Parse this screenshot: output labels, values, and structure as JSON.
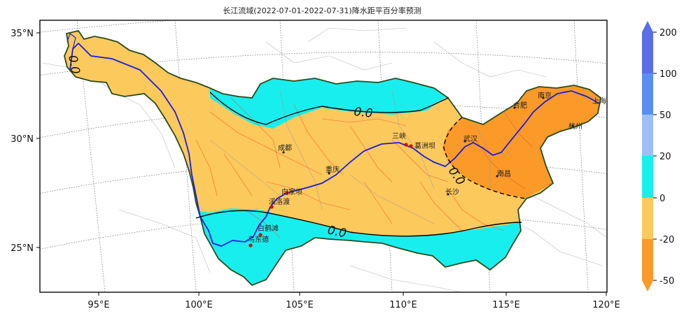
{
  "title": "长江流域(2022-07-01-2022-07-31)降水距平百分率预测",
  "axes": {
    "x_ticks": [
      "95°E",
      "100°E",
      "105°E",
      "110°E",
      "115°E",
      "120°E"
    ],
    "y_ticks": [
      "35°N",
      "30°N",
      "25°N"
    ]
  },
  "colorbar": {
    "ticks": [
      "200",
      "100",
      "50",
      "20",
      "0",
      "-20",
      "-50"
    ],
    "colors": [
      "#5a6ee8",
      "#5a8ef0",
      "#9dbff5",
      "#19eeee",
      "#fcc95c",
      "#fb9a29"
    ]
  },
  "contours": [
    {
      "name": "upper-zero-contour",
      "label": "0.0"
    },
    {
      "name": "lower-zero-contour",
      "label": "0.0"
    },
    {
      "name": "east-zero-contour",
      "label": "0.0"
    },
    {
      "name": "source-zero-contour",
      "label": "0.0"
    }
  ],
  "cities": [
    {
      "name": "成都"
    },
    {
      "name": "重庆"
    },
    {
      "name": "三峡"
    },
    {
      "name": "葛洲坝"
    },
    {
      "name": "武汉"
    },
    {
      "name": "南昌"
    },
    {
      "name": "长沙"
    },
    {
      "name": "合肥"
    },
    {
      "name": "南京"
    },
    {
      "name": "杭州"
    },
    {
      "name": "上海"
    },
    {
      "name": "向家坝"
    },
    {
      "name": "溪洛渡"
    },
    {
      "name": "白鹤滩"
    },
    {
      "name": "乌东德"
    }
  ],
  "legend_colors": {
    "above_zero": "#19eeee",
    "minus_20_to_0": "#fcc95c",
    "minus_50_to_minus_20": "#fb9a29",
    "river": "#1a1ae6",
    "basin_border": "#2a4a1a"
  }
}
